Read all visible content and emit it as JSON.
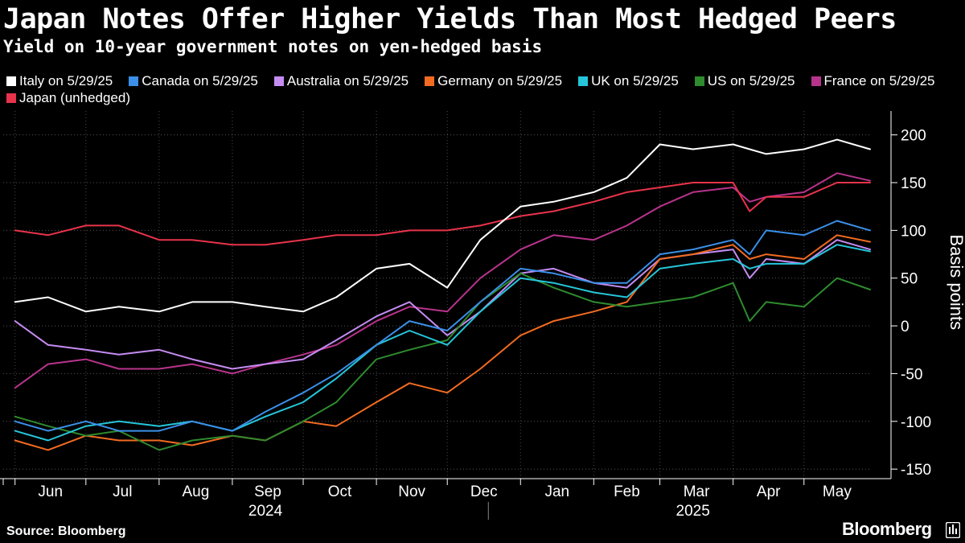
{
  "title": "Japan Notes Offer Higher Yields Than Most Hedged Peers",
  "subtitle": "Yield on 10-year government notes on yen-hedged basis",
  "source": "Source: Bloomberg",
  "brand": "Bloomberg",
  "brand_icon": "bloomberg-terminal-icon",
  "chart_data": {
    "type": "line",
    "title": "Japan Notes Offer Higher Yields Than Most Hedged Peers",
    "subtitle": "Yield on 10-year government notes on yen-hedged basis",
    "xlabel": "",
    "ylabel": "Basis points",
    "ylim": [
      -160,
      225
    ],
    "yticks": [
      200,
      150,
      100,
      50,
      0,
      -50,
      -100,
      -150
    ],
    "grid": true,
    "legend_position": "top",
    "x": [
      "2024-06-01",
      "2024-06-15",
      "2024-07-01",
      "2024-07-15",
      "2024-08-01",
      "2024-08-15",
      "2024-09-01",
      "2024-09-15",
      "2024-10-01",
      "2024-10-15",
      "2024-11-01",
      "2024-11-15",
      "2024-12-01",
      "2024-12-15",
      "2025-01-01",
      "2025-01-15",
      "2025-02-01",
      "2025-02-15",
      "2025-03-01",
      "2025-03-15",
      "2025-04-01",
      "2025-04-08",
      "2025-04-15",
      "2025-05-01",
      "2025-05-15",
      "2025-05-29"
    ],
    "x_range": [
      "2024-05-27",
      "2025-05-29"
    ],
    "x_months": [
      {
        "label": "Jun",
        "date": "2024-06-01"
      },
      {
        "label": "Jul",
        "date": "2024-07-01"
      },
      {
        "label": "Aug",
        "date": "2024-08-01"
      },
      {
        "label": "Sep",
        "date": "2024-09-01"
      },
      {
        "label": "Oct",
        "date": "2024-10-01"
      },
      {
        "label": "Nov",
        "date": "2024-11-01"
      },
      {
        "label": "Dec",
        "date": "2024-12-01"
      },
      {
        "label": "Jan",
        "date": "2025-01-01"
      },
      {
        "label": "Feb",
        "date": "2025-02-01"
      },
      {
        "label": "Mar",
        "date": "2025-03-01"
      },
      {
        "label": "Apr",
        "date": "2025-04-01"
      },
      {
        "label": "May",
        "date": "2025-05-01"
      }
    ],
    "x_years": [
      {
        "label": "2024",
        "date": "2024-09-15"
      },
      {
        "label": "2025",
        "date": "2025-03-15"
      }
    ],
    "year_divider": "2025-01-01",
    "series": [
      {
        "name": "Italy on 5/29/25",
        "color": "#ffffff",
        "values": [
          25,
          30,
          15,
          20,
          15,
          25,
          25,
          20,
          15,
          30,
          60,
          65,
          40,
          90,
          125,
          130,
          140,
          155,
          190,
          185,
          190,
          185,
          180,
          185,
          195,
          185
        ]
      },
      {
        "name": "Canada on 5/29/25",
        "color": "#3b8fe8",
        "values": [
          -100,
          -110,
          -100,
          -110,
          -110,
          -100,
          -110,
          -90,
          -70,
          -50,
          -20,
          5,
          -5,
          25,
          60,
          55,
          45,
          45,
          75,
          80,
          90,
          75,
          100,
          95,
          110,
          100
        ]
      },
      {
        "name": "Australia on 5/29/25",
        "color": "#c58cf2",
        "values": [
          5,
          -20,
          -25,
          -30,
          -25,
          -35,
          -45,
          -40,
          -35,
          -15,
          10,
          25,
          -10,
          15,
          55,
          60,
          45,
          40,
          70,
          75,
          80,
          50,
          70,
          65,
          90,
          80
        ]
      },
      {
        "name": "Germany on 5/29/25",
        "color": "#f26b21",
        "values": [
          -120,
          -130,
          -115,
          -120,
          -120,
          -125,
          -115,
          -120,
          -100,
          -105,
          -80,
          -60,
          -70,
          -45,
          -10,
          5,
          15,
          25,
          70,
          75,
          85,
          70,
          75,
          70,
          95,
          88
        ]
      },
      {
        "name": "UK on 5/29/25",
        "color": "#26c6da",
        "values": [
          -110,
          -120,
          -105,
          -100,
          -105,
          -100,
          -110,
          -95,
          -80,
          -55,
          -20,
          -5,
          -20,
          15,
          50,
          45,
          35,
          30,
          60,
          65,
          70,
          60,
          65,
          65,
          85,
          78
        ]
      },
      {
        "name": "US on 5/29/25",
        "color": "#2e8b2e",
        "values": [
          -95,
          -105,
          -115,
          -110,
          -130,
          -120,
          -115,
          -120,
          -100,
          -80,
          -35,
          -25,
          -15,
          25,
          55,
          40,
          25,
          20,
          25,
          30,
          45,
          5,
          25,
          20,
          50,
          38
        ]
      },
      {
        "name": "France on 5/29/25",
        "color": "#b8348c",
        "values": [
          -65,
          -40,
          -35,
          -45,
          -45,
          -40,
          -50,
          -40,
          -30,
          -20,
          5,
          20,
          15,
          50,
          80,
          95,
          90,
          105,
          125,
          140,
          145,
          130,
          135,
          140,
          160,
          152
        ]
      },
      {
        "name": "Japan (unhedged)",
        "color": "#e8334a",
        "values": [
          100,
          95,
          105,
          105,
          90,
          90,
          85,
          85,
          90,
          95,
          95,
          100,
          100,
          105,
          115,
          120,
          130,
          140,
          145,
          150,
          150,
          120,
          135,
          135,
          150,
          150
        ]
      }
    ]
  }
}
